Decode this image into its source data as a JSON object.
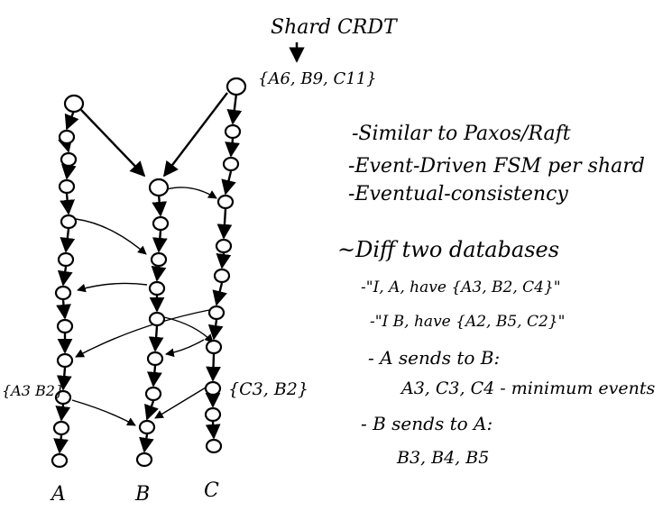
{
  "diagram": {
    "title": "Shard CRDT",
    "frontier_label": "{A6, B9, C11}",
    "notes": [
      "-Similar to Paxos/Raft",
      "-Event-Driven FSM per shard",
      "-Eventual-consistency"
    ],
    "diff_heading": "~Diff two databases",
    "diff_steps": [
      "-\"I, A, have {A3, B2, C4}\"",
      "-\"I B, have {A2, B5, C2}\"",
      "- A sends to B:",
      "A3, C3, C4 - minimum events",
      "- B sends to A:",
      "B3, B4, B5"
    ],
    "brace_A": "{A3 B2}",
    "brace_C": "{C3, B2}",
    "column_labels": [
      "A",
      "B",
      "C"
    ],
    "ink_color": "#000000",
    "background": "#ffffff"
  }
}
